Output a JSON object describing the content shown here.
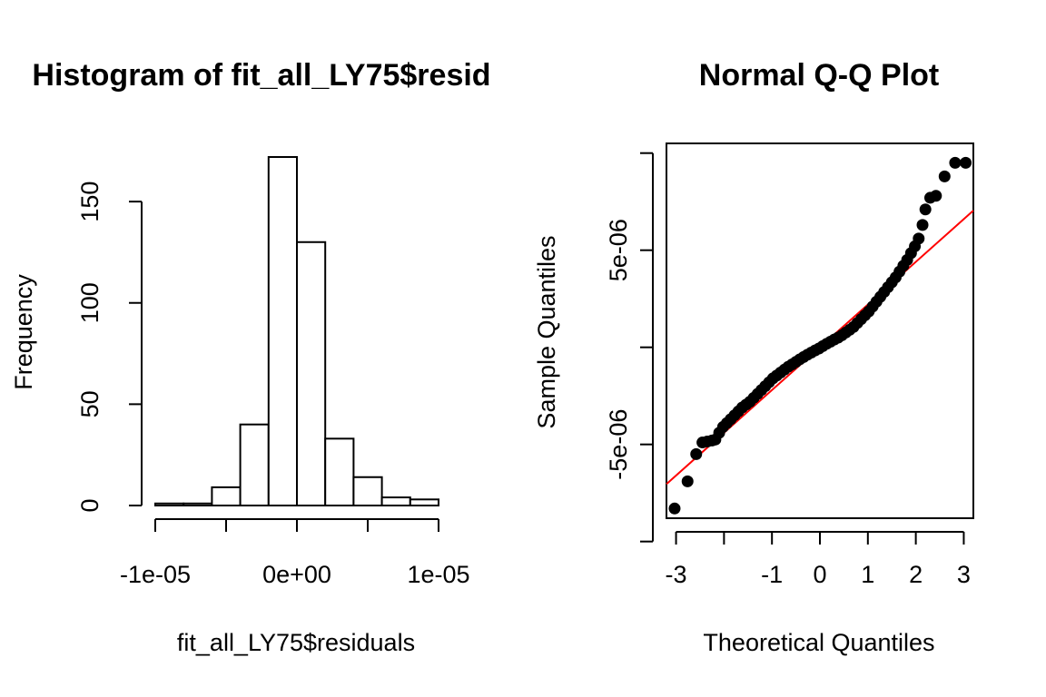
{
  "chart_data": [
    {
      "type": "bar",
      "subtype": "histogram",
      "title": "Histogram of fit_all_LY75$resid",
      "xlabel": "fit_all_LY75$residuals",
      "ylabel": "Frequency",
      "x_ticks": [
        -1e-05,
        -5e-06,
        0,
        5e-06,
        1e-05
      ],
      "x_tick_labels": [
        "-1e-05",
        "0e+00",
        "1e-05"
      ],
      "x_tick_label_values": [
        -1e-05,
        0,
        1e-05
      ],
      "y_ticks": [
        0,
        50,
        100,
        150
      ],
      "y_tick_labels": [
        "0",
        "50",
        "100",
        "150"
      ],
      "xlim": [
        -1e-05,
        1e-05
      ],
      "ylim": [
        0,
        172
      ],
      "bin_edges": [
        -1e-05,
        -8e-06,
        -6e-06,
        -4e-06,
        -2e-06,
        0,
        2e-06,
        4e-06,
        6e-06,
        8e-06,
        1e-05
      ],
      "values": [
        1,
        1,
        9,
        40,
        172,
        130,
        33,
        14,
        4,
        3
      ],
      "grid": false
    },
    {
      "type": "scatter",
      "subtype": "qq",
      "title": "Normal Q-Q Plot",
      "xlabel": "Theoretical Quantiles",
      "ylabel": "Sample Quantiles",
      "x_ticks": [
        -3,
        -2,
        -1,
        0,
        1,
        2,
        3
      ],
      "x_tick_labels": [
        "-3",
        "",
        "-1",
        "0",
        "1",
        "2",
        "3"
      ],
      "y_ticks": [
        -1e-05,
        -5e-06,
        0,
        5e-06,
        1e-05
      ],
      "y_tick_labels": [
        "",
        "-5e-06",
        "",
        "5e-06",
        ""
      ],
      "xlim": [
        -3.2,
        3.2
      ],
      "ylim": [
        -8.8e-06,
        1.05e-05
      ],
      "qq_line": {
        "intercept": 0,
        "slope": 2.2e-06
      },
      "points": [
        [
          -3.03,
          -8.3e-06
        ],
        [
          -2.76,
          -6.9e-06
        ],
        [
          -2.58,
          -5.5e-06
        ],
        [
          -2.45,
          -4.9e-06
        ],
        [
          -2.35,
          -4.85e-06
        ],
        [
          -2.25,
          -4.8e-06
        ],
        [
          -2.18,
          -4.75e-06
        ],
        [
          -2.1,
          -4.4e-06
        ],
        [
          -2.02,
          -4.1e-06
        ],
        [
          -1.94,
          -3.9e-06
        ],
        [
          -1.86,
          -3.7e-06
        ],
        [
          -1.78,
          -3.5e-06
        ],
        [
          -1.7,
          -3.3e-06
        ],
        [
          -1.62,
          -3.1e-06
        ],
        [
          -1.54,
          -2.95e-06
        ],
        [
          -1.46,
          -2.8e-06
        ],
        [
          -1.38,
          -2.6e-06
        ],
        [
          -1.3,
          -2.4e-06
        ],
        [
          -1.22,
          -2.2e-06
        ],
        [
          -1.14,
          -2e-06
        ],
        [
          -1.06,
          -1.8e-06
        ],
        [
          -0.98,
          -1.6e-06
        ],
        [
          -0.9,
          -1.45e-06
        ],
        [
          -0.82,
          -1.3e-06
        ],
        [
          -0.74,
          -1.15e-06
        ],
        [
          -0.66,
          -1e-06
        ],
        [
          -0.58,
          -8.8e-07
        ],
        [
          -0.5,
          -7.5e-07
        ],
        [
          -0.42,
          -6.2e-07
        ],
        [
          -0.34,
          -5e-07
        ],
        [
          -0.26,
          -3.8e-07
        ],
        [
          -0.18,
          -2.7e-07
        ],
        [
          -0.1,
          -1.6e-07
        ],
        [
          -0.02,
          -6e-08
        ],
        [
          0.06,
          6e-08
        ],
        [
          0.14,
          1.8e-07
        ],
        [
          0.22,
          2.9e-07
        ],
        [
          0.3,
          4e-07
        ],
        [
          0.38,
          5e-07
        ],
        [
          0.46,
          6.2e-07
        ],
        [
          0.54,
          7.6e-07
        ],
        [
          0.62,
          9e-07
        ],
        [
          0.7,
          1.05e-06
        ],
        [
          0.78,
          1.25e-06
        ],
        [
          0.86,
          1.45e-06
        ],
        [
          0.94,
          1.65e-06
        ],
        [
          1.02,
          1.85e-06
        ],
        [
          1.1,
          2.1e-06
        ],
        [
          1.18,
          2.35e-06
        ],
        [
          1.26,
          2.6e-06
        ],
        [
          1.34,
          2.85e-06
        ],
        [
          1.42,
          3.1e-06
        ],
        [
          1.5,
          3.35e-06
        ],
        [
          1.58,
          3.6e-06
        ],
        [
          1.66,
          3.9e-06
        ],
        [
          1.74,
          4.2e-06
        ],
        [
          1.82,
          4.5e-06
        ],
        [
          1.9,
          4.85e-06
        ],
        [
          1.98,
          5.2e-06
        ],
        [
          2.06,
          5.6e-06
        ],
        [
          2.14,
          6.3e-06
        ],
        [
          2.2,
          7.1e-06
        ],
        [
          2.3,
          7.7e-06
        ],
        [
          2.42,
          7.8e-06
        ],
        [
          2.6,
          8.8e-06
        ],
        [
          2.82,
          9.5e-06
        ],
        [
          3.04,
          9.5e-06
        ]
      ],
      "grid": false
    }
  ]
}
